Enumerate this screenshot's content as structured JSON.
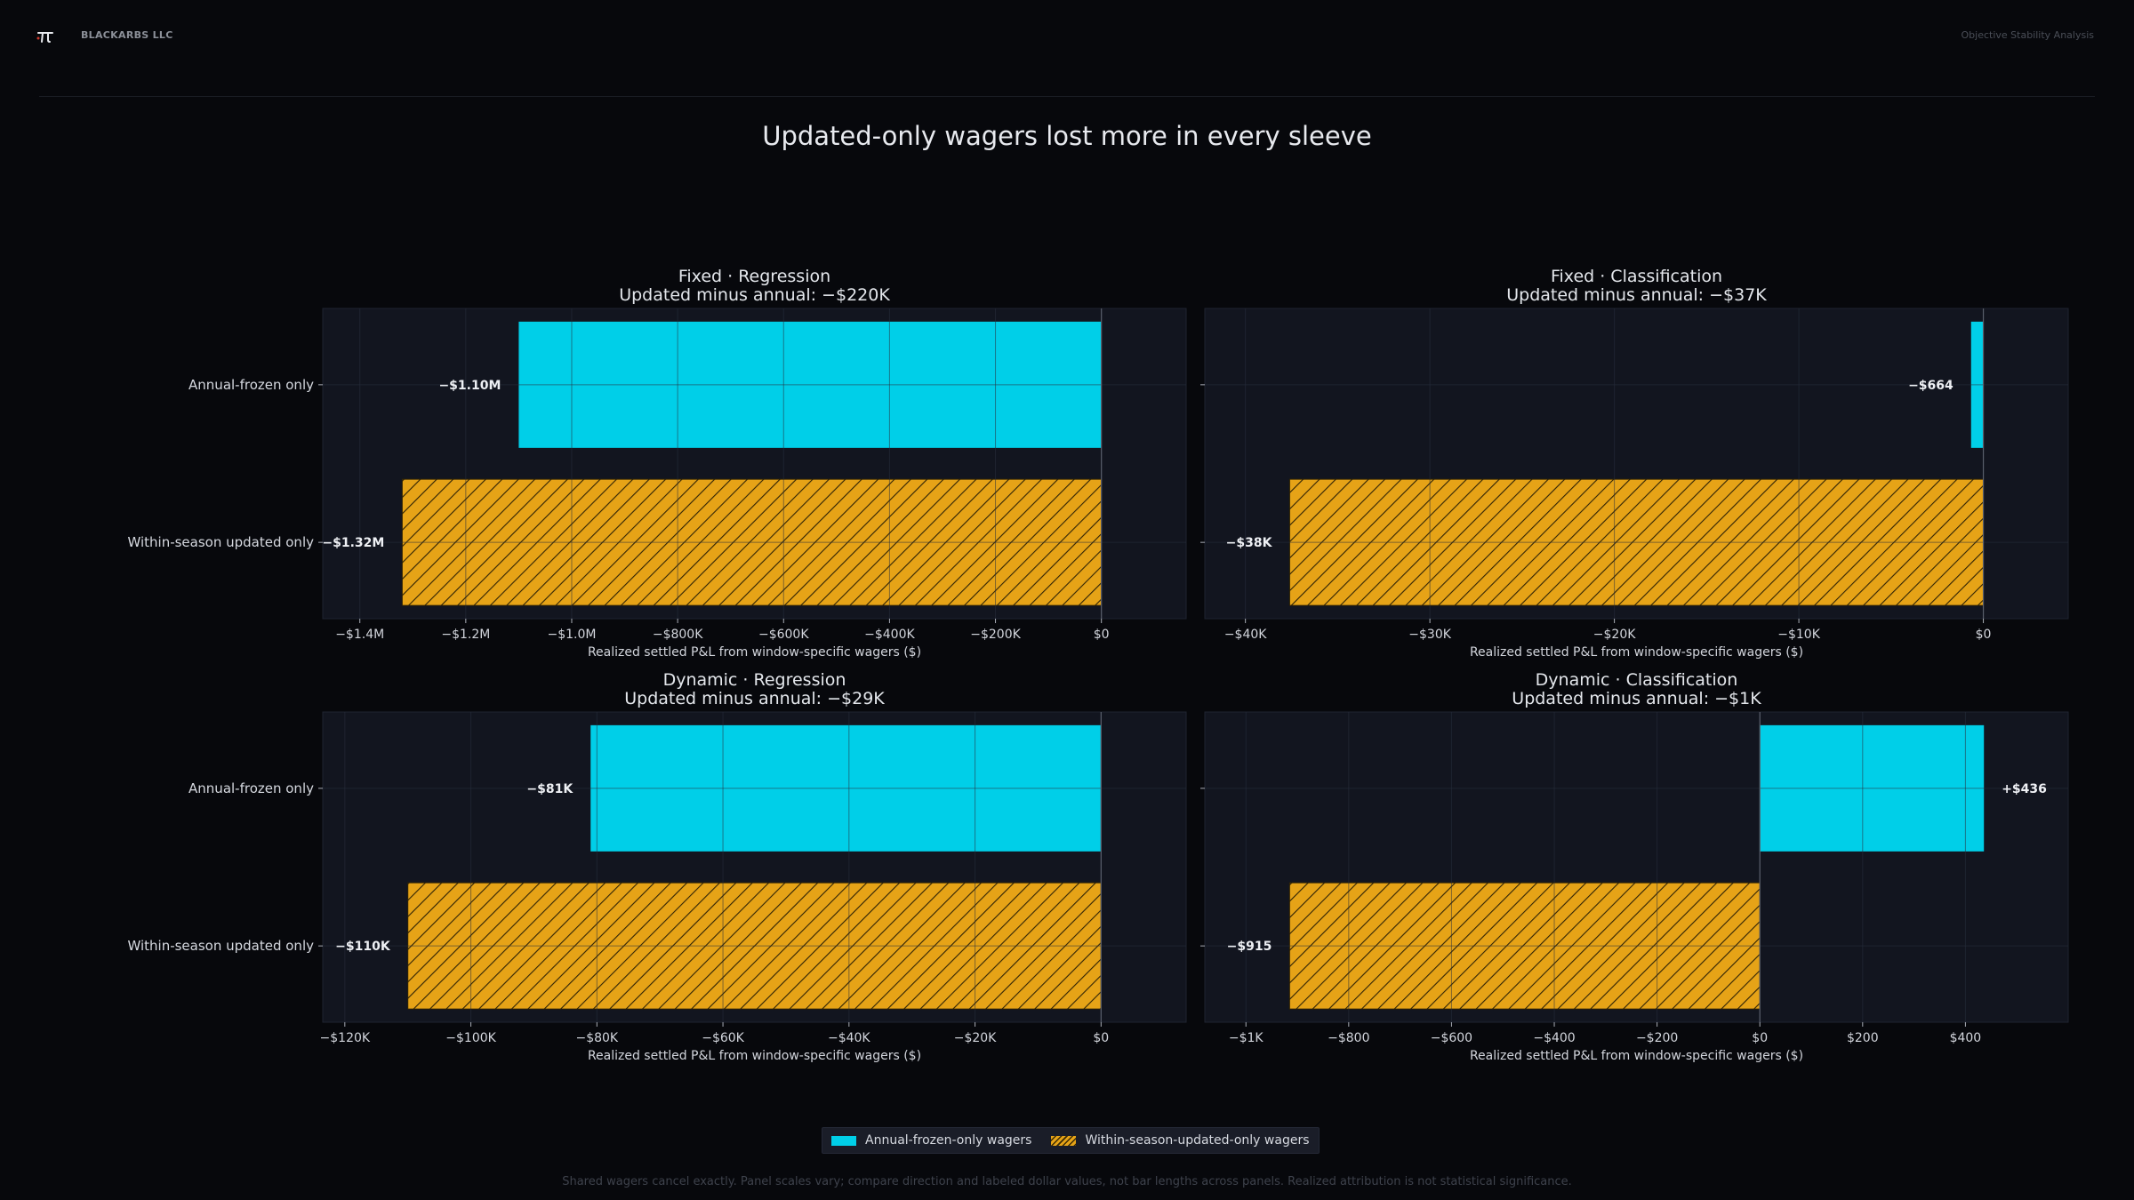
{
  "header": {
    "brand": "BLACKARBS LLC",
    "right_label": "Objective Stability Analysis"
  },
  "title": "Updated-only wagers lost more in every sleeve",
  "colors": {
    "annual": "#00cfe8",
    "updated": "#e6a317",
    "panel_bg": "#12151f",
    "background": "#07080c"
  },
  "legend": {
    "annual_label": "Annual-frozen-only wagers",
    "updated_label": "Within-season-updated-only wagers"
  },
  "footnote": "Shared wagers cancel exactly. Panel scales vary; compare direction and labeled dollar values, not bar lengths across panels. Realized attribution is not statistical significance.",
  "chart_data": [
    {
      "type": "bar",
      "orientation": "horizontal",
      "title": "Fixed · Regression",
      "subtitle": "Updated minus annual: −$220K",
      "xlabel": "Realized settled P&L from window-specific wagers ($)",
      "categories": [
        "Annual-frozen only",
        "Within-season updated only"
      ],
      "values": [
        -1100000,
        -1320000
      ],
      "value_labels": [
        "−$1.10M",
        "−$1.32M"
      ],
      "xlim": [
        -1470000,
        160000
      ],
      "ticks": [
        -1400000,
        -1200000,
        -1000000,
        -800000,
        -600000,
        -400000,
        -200000,
        0
      ],
      "tick_labels": [
        "−$1.4M",
        "−$1.2M",
        "−$1.0M",
        "−$800K",
        "−$600K",
        "−$400K",
        "−$200K",
        "$0"
      ]
    },
    {
      "type": "bar",
      "orientation": "horizontal",
      "title": "Fixed · Classification",
      "subtitle": "Updated minus annual: −$37K",
      "xlabel": "Realized settled P&L from window-specific wagers ($)",
      "categories": [
        "Annual-frozen only",
        "Within-season updated only"
      ],
      "values": [
        -664,
        -37600
      ],
      "value_labels": [
        "−$664",
        "−$38K"
      ],
      "xlim": [
        -42200,
        4600
      ],
      "ticks": [
        -40000,
        -30000,
        -20000,
        -10000,
        0
      ],
      "tick_labels": [
        "−$40K",
        "−$30K",
        "−$20K",
        "−$10K",
        "$0"
      ]
    },
    {
      "type": "bar",
      "orientation": "horizontal",
      "title": "Dynamic · Regression",
      "subtitle": "Updated minus annual: −$29K",
      "xlabel": "Realized settled P&L from window-specific wagers ($)",
      "categories": [
        "Annual-frozen only",
        "Within-season updated only"
      ],
      "values": [
        -81000,
        -110000
      ],
      "value_labels": [
        "−$81K",
        "−$110K"
      ],
      "xlim": [
        -123500,
        13500
      ],
      "ticks": [
        -120000,
        -100000,
        -80000,
        -60000,
        -40000,
        -20000,
        0
      ],
      "tick_labels": [
        "−$120K",
        "−$100K",
        "−$80K",
        "−$60K",
        "−$40K",
        "−$20K",
        "$0"
      ]
    },
    {
      "type": "bar",
      "orientation": "horizontal",
      "title": "Dynamic · Classification",
      "subtitle": "Updated minus annual: −$1K",
      "xlabel": "Realized settled P&L from window-specific wagers ($)",
      "categories": [
        "Annual-frozen only",
        "Within-season updated only"
      ],
      "values": [
        436,
        -915
      ],
      "value_labels": [
        "+$436",
        "−$915"
      ],
      "xlim": [
        -1080,
        600
      ],
      "ticks": [
        -1000,
        -800,
        -600,
        -400,
        -200,
        0,
        200,
        400
      ],
      "tick_labels": [
        "−$1K",
        "−$800",
        "−$600",
        "−$400",
        "−$200",
        "$0",
        "$200",
        "$400"
      ]
    }
  ]
}
